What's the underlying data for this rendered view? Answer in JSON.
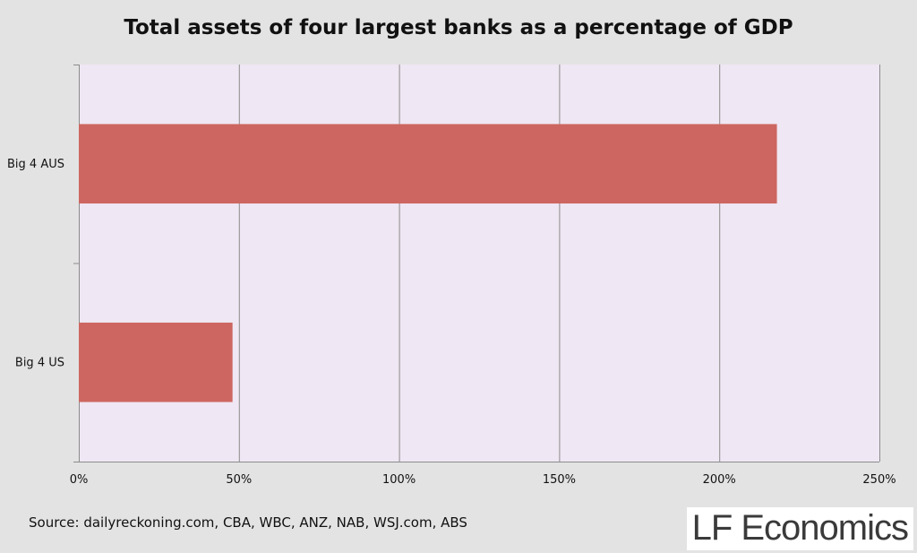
{
  "chart_data": {
    "type": "bar",
    "orientation": "horizontal",
    "title": "Total assets of four largest banks as a percentage of GDP",
    "categories": [
      "Big 4 AUS",
      "Big 4 US"
    ],
    "values": [
      218,
      48
    ],
    "xlim": [
      0,
      250
    ],
    "x_ticks": [
      0,
      50,
      100,
      150,
      200,
      250
    ],
    "x_tick_labels": [
      "0%",
      "50%",
      "100%",
      "150%",
      "200%",
      "250%"
    ],
    "grid": "vertical",
    "colors": {
      "bar": "#cd6660",
      "plot_background": "#efe7f3",
      "page_background": "#e3e3e3",
      "grid": "#8c8c8c"
    }
  },
  "footer": {
    "source": "Source: dailyreckoning.com, CBA, WBC, ANZ, NAB, WSJ.com, ABS",
    "logo_text": "LF Economics"
  }
}
